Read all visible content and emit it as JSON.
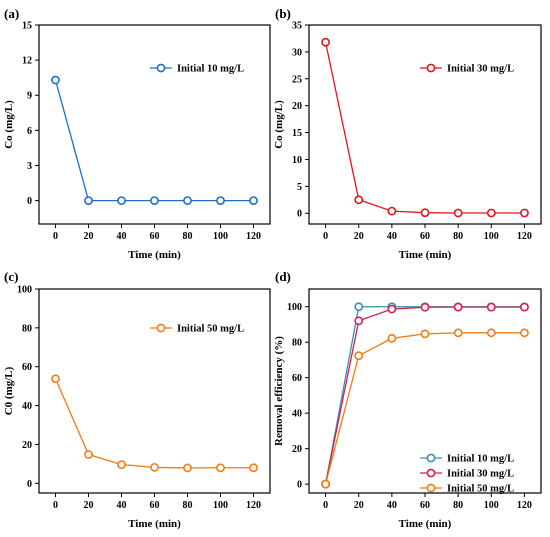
{
  "chart_data": [
    {
      "panel": "(a)",
      "type": "line",
      "x": [
        0,
        20,
        40,
        60,
        80,
        100,
        120
      ],
      "xlabel": "Time (min)",
      "ylabel": "Co (mg/L)",
      "xticks": [
        0,
        20,
        40,
        60,
        80,
        100,
        120
      ],
      "yticks": [
        0,
        3,
        6,
        9,
        12,
        15
      ],
      "xlim": [
        -10,
        130
      ],
      "ylim": [
        -2,
        15
      ],
      "legend_position": "top-right",
      "series": [
        {
          "name": "Initial 10 mg/L",
          "color": "#1f6fc5",
          "values": [
            10.3,
            0,
            0,
            0,
            0,
            0,
            0
          ]
        }
      ]
    },
    {
      "panel": "(b)",
      "type": "line",
      "x": [
        0,
        20,
        40,
        60,
        80,
        100,
        120
      ],
      "xlabel": "Time (min)",
      "ylabel": "Co (mg/L)",
      "xticks": [
        0,
        20,
        40,
        60,
        80,
        100,
        120
      ],
      "yticks": [
        0,
        5,
        10,
        15,
        20,
        25,
        30,
        35
      ],
      "xlim": [
        -10,
        130
      ],
      "ylim": [
        -2,
        35
      ],
      "legend_position": "top-right",
      "series": [
        {
          "name": "Initial 30 mg/L",
          "color": "#e3141e",
          "values": [
            31.8,
            2.5,
            0.4,
            0.1,
            0.05,
            0.05,
            0.05
          ]
        }
      ]
    },
    {
      "panel": "(c)",
      "type": "line",
      "x": [
        0,
        20,
        40,
        60,
        80,
        100,
        120
      ],
      "xlabel": "Time (min)",
      "ylabel": "C0 (mg/L)",
      "xticks": [
        0,
        20,
        40,
        60,
        80,
        100,
        120
      ],
      "yticks": [
        0,
        20,
        40,
        60,
        80,
        100
      ],
      "xlim": [
        -10,
        130
      ],
      "ylim": [
        -5,
        100
      ],
      "legend_position": "top-right",
      "series": [
        {
          "name": "Initial 50 mg/L",
          "color": "#f07c14",
          "values": [
            53.8,
            14.8,
            9.6,
            8.2,
            7.9,
            8.0,
            8.0
          ]
        }
      ]
    },
    {
      "panel": "(d)",
      "type": "line",
      "x": [
        0,
        20,
        40,
        60,
        80,
        100,
        120
      ],
      "xlabel": "Time (min)",
      "ylabel": "Removal efficiency (%)",
      "xticks": [
        0,
        20,
        40,
        60,
        80,
        100,
        120
      ],
      "yticks": [
        0,
        20,
        40,
        60,
        80,
        100
      ],
      "xlim": [
        -10,
        130
      ],
      "ylim": [
        -5,
        110
      ],
      "legend_position": "bottom-right",
      "series": [
        {
          "name": "Initial 10 mg/L",
          "color": "#3a8fb7",
          "values": [
            0,
            100,
            100,
            100,
            100,
            100,
            100
          ]
        },
        {
          "name": "Initial 30 mg/L",
          "color": "#d6204e",
          "values": [
            0,
            92.1,
            98.7,
            99.7,
            99.8,
            99.8,
            99.8
          ]
        },
        {
          "name": "Initial 50 mg/L",
          "color": "#f07c14",
          "values": [
            0,
            72.4,
            82.2,
            84.7,
            85.3,
            85.3,
            85.3
          ]
        }
      ]
    }
  ]
}
